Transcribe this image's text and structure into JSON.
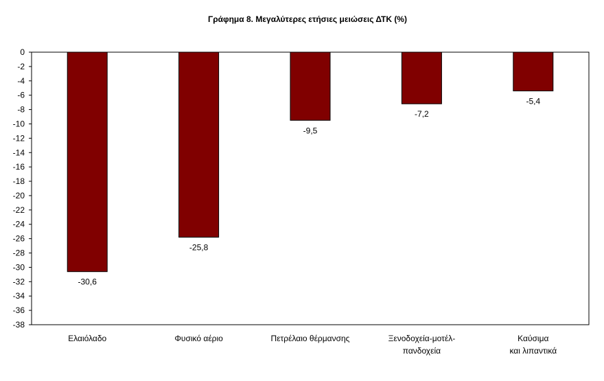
{
  "chart_data": {
    "type": "bar",
    "title": "Γράφημα 8. Μεγαλύτερες ετήσιες μειώσεις ΔΤΚ (%)",
    "categories": [
      [
        "Ελαιόλαδο"
      ],
      [
        "Φυσικό αέριο"
      ],
      [
        "Πετρέλαιο θέρμανσης"
      ],
      [
        "Ξενοδοχεία-μοτέλ-",
        "πανδοχεία"
      ],
      [
        "Καύσιμα",
        "και λιπαντικά"
      ]
    ],
    "values": [
      -30.6,
      -25.8,
      -9.5,
      -7.2,
      -5.4
    ],
    "value_labels": [
      "-30,6",
      "-25,8",
      "-9,5",
      "-7,2",
      "-5,4"
    ],
    "ylim": [
      -38,
      0
    ],
    "ytick_step": 2,
    "grid": false,
    "bar_color": "#800000",
    "bar_edge_color": "#000000",
    "xlabel": "",
    "ylabel": ""
  }
}
